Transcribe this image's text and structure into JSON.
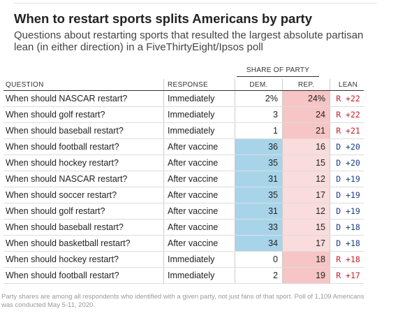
{
  "title": "When to restart sports splits Americans by party",
  "subtitle": "Questions about restarting sports that resulted the largest absolute partisan lean (in either direction) in a FiveThirtyEight/Ipsos poll",
  "group_header": "SHARE OF PARTY",
  "columns": {
    "question": "QUESTION",
    "response": "RESPONSE",
    "dem": "DEM.",
    "rep": "REP.",
    "lean": "LEAN"
  },
  "colors": {
    "dem_strong": "#a8d4ea",
    "dem_mid": "#c6e3f2",
    "dem_light": "#e6f3fa",
    "rep_strong": "#f7c5c5",
    "rep_mid": "#fadcdc",
    "rep_light": "#fdeeee",
    "lean_r": "#c0232b",
    "lean_d": "#1a3a8a"
  },
  "rows": [
    {
      "question": "When should NASCAR restart?",
      "response": "Immediately",
      "dem": "2%",
      "rep": "24%",
      "lean": "R +22",
      "party": "R",
      "dem_level": 0,
      "rep_level": 3
    },
    {
      "question": "When should golf restart?",
      "response": "Immediately",
      "dem": "3",
      "rep": "24",
      "lean": "R +22",
      "party": "R",
      "dem_level": 0,
      "rep_level": 3
    },
    {
      "question": "When should baseball restart?",
      "response": "Immediately",
      "dem": "1",
      "rep": "21",
      "lean": "R +21",
      "party": "R",
      "dem_level": 0,
      "rep_level": 3
    },
    {
      "question": "When should football restart?",
      "response": "After vaccine",
      "dem": "36",
      "rep": "16",
      "lean": "D +20",
      "party": "D",
      "dem_level": 3,
      "rep_level": 2
    },
    {
      "question": "When should hockey restart?",
      "response": "After vaccine",
      "dem": "35",
      "rep": "15",
      "lean": "D +20",
      "party": "D",
      "dem_level": 3,
      "rep_level": 2
    },
    {
      "question": "When should NASCAR restart?",
      "response": "After vaccine",
      "dem": "31",
      "rep": "12",
      "lean": "D +19",
      "party": "D",
      "dem_level": 3,
      "rep_level": 2
    },
    {
      "question": "When should soccer restart?",
      "response": "After vaccine",
      "dem": "35",
      "rep": "17",
      "lean": "D +19",
      "party": "D",
      "dem_level": 3,
      "rep_level": 2
    },
    {
      "question": "When should golf restart?",
      "response": "After vaccine",
      "dem": "31",
      "rep": "12",
      "lean": "D +19",
      "party": "D",
      "dem_level": 3,
      "rep_level": 2
    },
    {
      "question": "When should baseball restart?",
      "response": "After vaccine",
      "dem": "33",
      "rep": "15",
      "lean": "D +18",
      "party": "D",
      "dem_level": 3,
      "rep_level": 2
    },
    {
      "question": "When should basketball restart?",
      "response": "After vaccine",
      "dem": "34",
      "rep": "17",
      "lean": "D +18",
      "party": "D",
      "dem_level": 3,
      "rep_level": 2
    },
    {
      "question": "When should hockey restart?",
      "response": "Immediately",
      "dem": "0",
      "rep": "18",
      "lean": "R +18",
      "party": "R",
      "dem_level": 0,
      "rep_level": 3
    },
    {
      "question": "When should football restart?",
      "response": "Immediately",
      "dem": "2",
      "rep": "19",
      "lean": "R +17",
      "party": "R",
      "dem_level": 0,
      "rep_level": 3
    }
  ],
  "footnote": "Party shares are among all respondents who identified with a given party, not just fans of that sport. Poll of 1,109 Americans was conducted May 5-11, 2020."
}
